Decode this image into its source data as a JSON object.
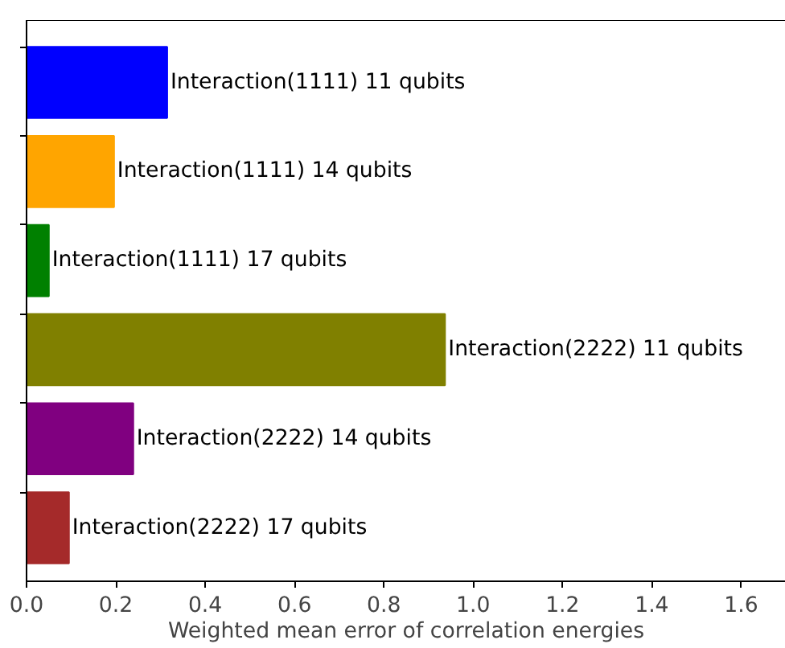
{
  "chart_data": {
    "type": "bar",
    "orientation": "horizontal",
    "xlabel": "Weighted mean error of correlation energies",
    "categories": [
      "Interaction(1111) 11 qubits",
      "Interaction(1111) 14 qubits",
      "Interaction(1111) 17 qubits",
      "Interaction(2222) 11 qubits",
      "Interaction(2222) 14 qubits",
      "Interaction(2222) 17 qubits"
    ],
    "values": [
      0.315,
      0.196,
      0.05,
      0.937,
      0.239,
      0.095
    ],
    "colors": [
      "#0000ff",
      "#ffa500",
      "#008000",
      "#808000",
      "#800080",
      "#a52a2a"
    ],
    "xlim": [
      0,
      1.7
    ],
    "xticks": [
      {
        "value": 0,
        "label": "0.0"
      },
      0.2,
      0.4,
      0.6,
      0.8,
      {
        "value": 1,
        "label": "1.0"
      },
      1.2,
      1.4,
      1.6
    ],
    "grid": false
  }
}
